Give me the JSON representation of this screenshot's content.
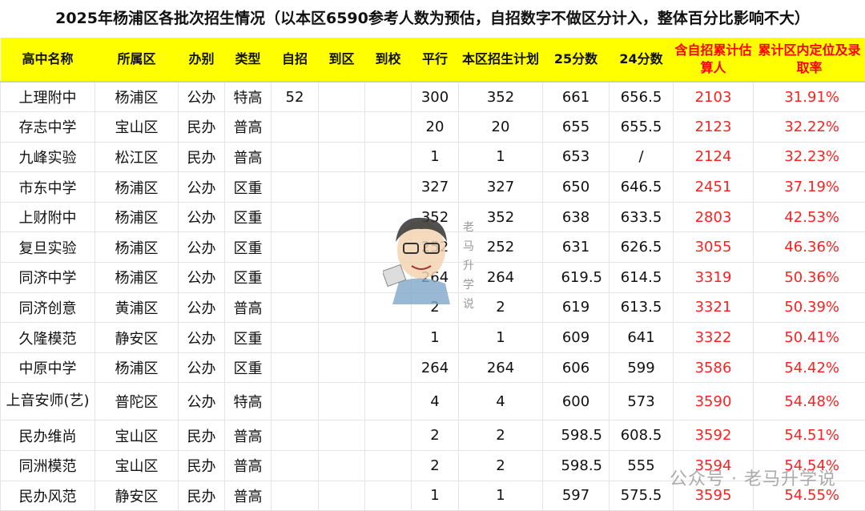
{
  "title": "2025年杨浦区各批次招生情况（以本区6590参考人数为预估，自招数字不做区分计入，整体百分比影响不大）",
  "colors": {
    "header_bg": "#ffff00",
    "accent_red": "#ff0000"
  },
  "headers": [
    "高中名称",
    "所属区",
    "办别",
    "类型",
    "自招",
    "到区",
    "到校",
    "平行",
    "本区招生计划",
    "25分数",
    "24分数",
    "含自招累计估算人",
    "累计区内定位及录取率"
  ],
  "rows": [
    [
      "上理附中",
      "杨浦区",
      "公办",
      "特高",
      "52",
      "",
      "",
      "300",
      "352",
      "661",
      "656.5",
      "2103",
      "31.91%"
    ],
    [
      "存志中学",
      "宝山区",
      "民办",
      "普高",
      "",
      "",
      "",
      "20",
      "20",
      "655",
      "655.5",
      "2123",
      "32.22%"
    ],
    [
      "九峰实验",
      "松江区",
      "民办",
      "普高",
      "",
      "",
      "",
      "1",
      "1",
      "653",
      "/",
      "2124",
      "32.23%"
    ],
    [
      "市东中学",
      "杨浦区",
      "公办",
      "区重",
      "",
      "",
      "",
      "327",
      "327",
      "650",
      "646.5",
      "2451",
      "37.19%"
    ],
    [
      "上财附中",
      "杨浦区",
      "公办",
      "区重",
      "",
      "",
      "",
      "352",
      "352",
      "638",
      "633.5",
      "2803",
      "42.53%"
    ],
    [
      "复旦实验",
      "杨浦区",
      "公办",
      "区重",
      "",
      "",
      "",
      "252",
      "252",
      "631",
      "626.5",
      "3055",
      "46.36%"
    ],
    [
      "同济中学",
      "杨浦区",
      "公办",
      "区重",
      "",
      "",
      "",
      "264",
      "264",
      "619.5",
      "614.5",
      "3319",
      "50.36%"
    ],
    [
      "同济创意",
      "黄浦区",
      "公办",
      "普高",
      "",
      "",
      "",
      "2",
      "2",
      "619",
      "613.5",
      "3321",
      "50.39%"
    ],
    [
      "久隆模范",
      "静安区",
      "公办",
      "区重",
      "",
      "",
      "",
      "1",
      "1",
      "609",
      "641",
      "3322",
      "50.41%"
    ],
    [
      "中原中学",
      "杨浦区",
      "公办",
      "区重",
      "",
      "",
      "",
      "264",
      "264",
      "606",
      "599",
      "3586",
      "54.42%"
    ],
    [
      "上音安师(艺)",
      "普陀区",
      "公办",
      "特高",
      "",
      "",
      "",
      "4",
      "4",
      "600",
      "573",
      "3590",
      "54.48%"
    ],
    [
      "民办维尚",
      "宝山区",
      "民办",
      "普高",
      "",
      "",
      "",
      "2",
      "2",
      "598.5",
      "608.5",
      "3592",
      "54.51%"
    ],
    [
      "同洲模范",
      "宝山区",
      "民办",
      "普高",
      "",
      "",
      "",
      "2",
      "2",
      "598.5",
      "555",
      "3594",
      "54.54%"
    ],
    [
      "民办风范",
      "静安区",
      "民办",
      "普高",
      "",
      "",
      "",
      "1",
      "1",
      "597",
      "575.5",
      "3595",
      "54.55%"
    ]
  ],
  "watermark": {
    "vertical": "老马升学说",
    "footer": "公众号 · 老马升学说"
  }
}
